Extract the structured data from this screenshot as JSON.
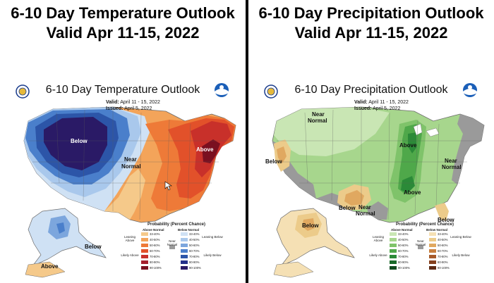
{
  "left": {
    "headline_line1": "6-10 Day Temperature Outlook",
    "headline_line2": "Valid Apr 11-15, 2022",
    "map_title": "6-10 Day Temperature Outlook",
    "valid_label": "Valid:",
    "valid_value": "April 11 - 15, 2022",
    "issued_label": "Issued:",
    "issued_value": "April 5, 2022",
    "labels": {
      "below": "Below",
      "near": "Near",
      "normal": "Normal",
      "above": "Above",
      "alaska_below": "Below",
      "alaska_above": "Above"
    },
    "legend": {
      "title": "Probability (Percent Chance)",
      "col1_head": "Above Normal",
      "col2_head": "Below Normal",
      "leaning_above": "Leaning Above",
      "likely_above": "Likely Above",
      "near_normal": "Near Normal",
      "leaning_below": "Leaning Below",
      "likely_below": "Likely Below",
      "col1": [
        "33-40%",
        "40-50%",
        "50-60%",
        "60-70%",
        "70-80%",
        "80-90%",
        "90-100%"
      ],
      "col2": [
        "33-40%",
        "40-50%",
        "50-60%",
        "60-70%",
        "70-80%",
        "80-90%",
        "90-100%"
      ],
      "col1_colors": [
        "#f5c98a",
        "#f3a45a",
        "#ee7a38",
        "#e2512a",
        "#c8302a",
        "#a51f2d",
        "#7a1020"
      ],
      "col2_colors": [
        "#cfe1f4",
        "#a9c8ec",
        "#7ca6dd",
        "#4a7fcb",
        "#2c55a8",
        "#24308a",
        "#2a1a66"
      ]
    }
  },
  "right": {
    "headline_line1": "6-10 Day Precipitation Outlook",
    "headline_line2": "Valid Apr 11-15, 2022",
    "map_title": "6-10 Day Precipitation Outlook",
    "valid_label": "Valid:",
    "valid_value": "April 11 - 15, 2022",
    "issued_label": "Issued:",
    "issued_value": "April 5, 2022",
    "labels": {
      "near1": "Near",
      "normal1": "Normal",
      "below_west": "Below",
      "above_north": "Above",
      "near2": "Near",
      "normal2": "Normal",
      "above_south": "Above",
      "below_tx": "Below",
      "near3": "Near",
      "normal3": "Normal",
      "below_fl": "Below",
      "alaska_below": "Below"
    },
    "legend": {
      "title": "Probability (Percent Chance)",
      "col1_head": "Above Normal",
      "col2_head": "Below Normal",
      "leaning_above": "Leaning Above",
      "likely_above": "Likely Above",
      "near_normal": "Near Normal",
      "leaning_below": "Leaning Below",
      "likely_below": "Likely Below",
      "col1": [
        "33-40%",
        "40-50%",
        "50-60%",
        "60-70%",
        "70-80%",
        "80-90%",
        "90-100%"
      ],
      "col2": [
        "33-40%",
        "40-50%",
        "50-60%",
        "60-70%",
        "70-80%",
        "80-90%",
        "90-100%"
      ],
      "col1_colors": [
        "#c9e6b4",
        "#a7d68d",
        "#7fc36a",
        "#4fa84a",
        "#2b8a38",
        "#1a6a2a",
        "#0f4a1e"
      ],
      "col2_colors": [
        "#f5e0b4",
        "#eccb8a",
        "#e0a860",
        "#c98040",
        "#a65a2a",
        "#85401e",
        "#5e2a14"
      ]
    }
  },
  "colors": {
    "background": "#ffffff",
    "divider": "#000000",
    "near_normal_gray": "#9a9a9a"
  }
}
